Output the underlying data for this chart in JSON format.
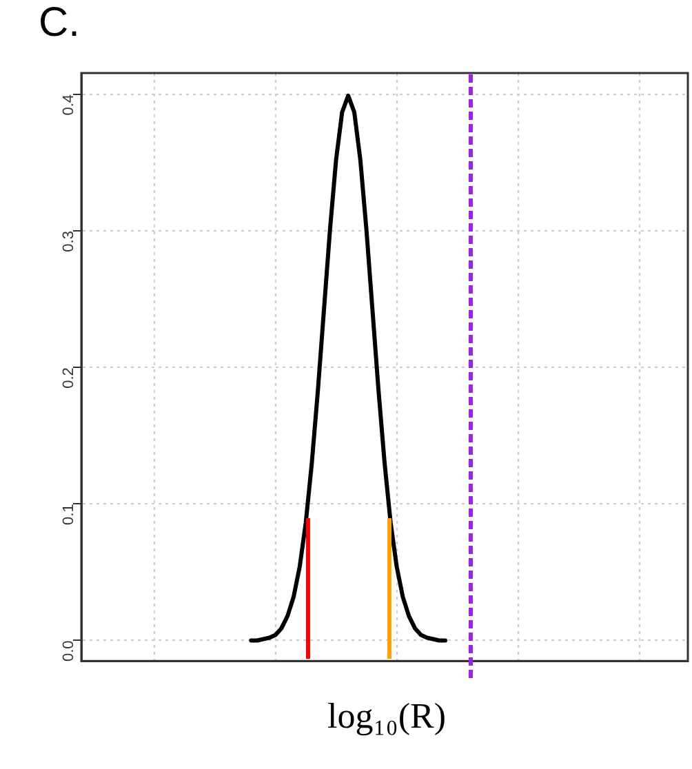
{
  "chart_data": {
    "type": "line",
    "title": "C.",
    "xlabel": "log₁₀(R)",
    "categories": [
      null,
      null,
      null,
      null,
      null,
      null,
      null,
      null,
      null,
      null,
      null,
      null,
      null,
      null,
      null,
      null,
      null,
      null,
      null,
      null,
      null,
      null,
      null,
      null,
      null,
      null,
      null,
      null,
      null,
      null,
      null,
      null,
      null,
      null,
      null,
      null,
      null,
      null,
      null,
      null,
      null,
      null,
      null,
      null,
      null,
      null,
      null,
      null,
      null,
      null,
      null,
      null,
      null,
      null,
      null,
      null,
      null,
      null,
      null,
      null,
      null,
      null,
      null,
      null,
      null,
      null,
      null,
      null,
      null,
      null,
      null,
      null,
      null,
      null,
      null,
      null,
      null,
      null,
      null,
      null,
      null,
      null,
      null,
      null,
      null,
      null,
      null,
      null,
      null,
      null,
      null,
      null,
      null,
      null,
      null,
      null,
      null,
      null,
      null,
      null,
      null
    ],
    "series": [
      {
        "color": "#000000",
        "values": [
          null,
          null,
          null,
          null,
          null,
          null,
          null,
          null,
          null,
          null,
          null,
          null,
          null,
          null,
          null,
          null,
          null,
          null,
          null,
          null,
          null,
          null,
          null,
          null,
          null,
          null,
          null,
          null,
          0.0,
          0.0,
          0.001,
          0.002,
          0.004,
          0.009,
          0.018,
          0.032,
          0.054,
          0.086,
          0.13,
          0.183,
          0.242,
          0.301,
          0.352,
          0.387,
          0.399,
          0.387,
          0.352,
          0.301,
          0.242,
          0.183,
          0.13,
          0.086,
          0.054,
          0.032,
          0.018,
          0.009,
          0.004,
          0.002,
          0.001,
          0.0,
          0.0,
          null,
          null,
          null,
          null,
          null,
          null,
          null,
          null,
          null,
          null,
          null,
          null,
          null,
          null,
          null,
          null,
          null,
          null,
          null,
          null,
          null,
          null,
          null,
          null,
          null,
          null,
          null,
          null,
          null,
          null,
          null,
          null,
          null,
          null,
          null,
          null,
          null,
          null,
          null,
          null
        ]
      }
    ],
    "ylim": [
      -0.015,
      0.4156
    ],
    "yticks": [
      {
        "value": 0,
        "label": "0.0"
      },
      {
        "value": 0.1,
        "label": "0.1"
      },
      {
        "value": 0.2,
        "label": "0.2"
      },
      {
        "value": 0.3,
        "label": "0.3"
      },
      {
        "value": 0.4,
        "label": "0.4"
      }
    ],
    "grid": true,
    "marker": "none",
    "line_style": "solid"
  }
}
